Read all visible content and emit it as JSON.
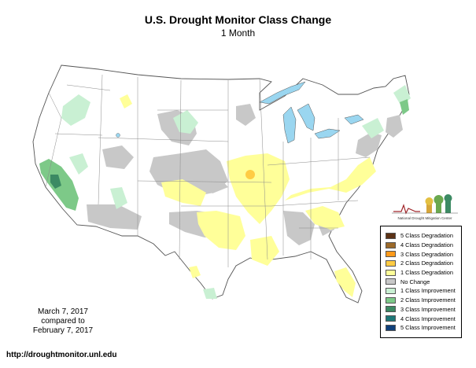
{
  "title": "U.S. Drought Monitor Class Change",
  "subtitle": "1 Month",
  "dates": {
    "line1": "March 7, 2017",
    "line2": "compared to",
    "line3": "February 7, 2017"
  },
  "url": "http://droughtmonitor.unl.edu",
  "logo_text": "National Drought Mitigation Center",
  "colors": {
    "land": "#ffffff",
    "water": "#9ad6f0",
    "border": "#6b6b6b",
    "no_change": "#c8c8c8",
    "degrade_1": "#ffff99",
    "improve_1": "#c9f0d3",
    "improve_2": "#7dc988",
    "improve_3": "#3c8a63"
  },
  "legend": [
    {
      "label": "5 Class Degradation",
      "color": "#5c3216"
    },
    {
      "label": "4 Class Degradation",
      "color": "#9c6a2a"
    },
    {
      "label": "3 Class Degradation",
      "color": "#ff9a1a"
    },
    {
      "label": "2 Class Degradation",
      "color": "#ffcc44"
    },
    {
      "label": "1 Class Degradation",
      "color": "#ffff99"
    },
    {
      "label": "No Change",
      "color": "#c8c8c8"
    },
    {
      "label": "1 Class Improvement",
      "color": "#c9f0d3"
    },
    {
      "label": "2 Class Improvement",
      "color": "#7dc988"
    },
    {
      "label": "3 Class Improvement",
      "color": "#3c8a63"
    },
    {
      "label": "4 Class Improvement",
      "color": "#1e7878"
    },
    {
      "label": "5 Class Improvement",
      "color": "#0f3f7a"
    }
  ]
}
